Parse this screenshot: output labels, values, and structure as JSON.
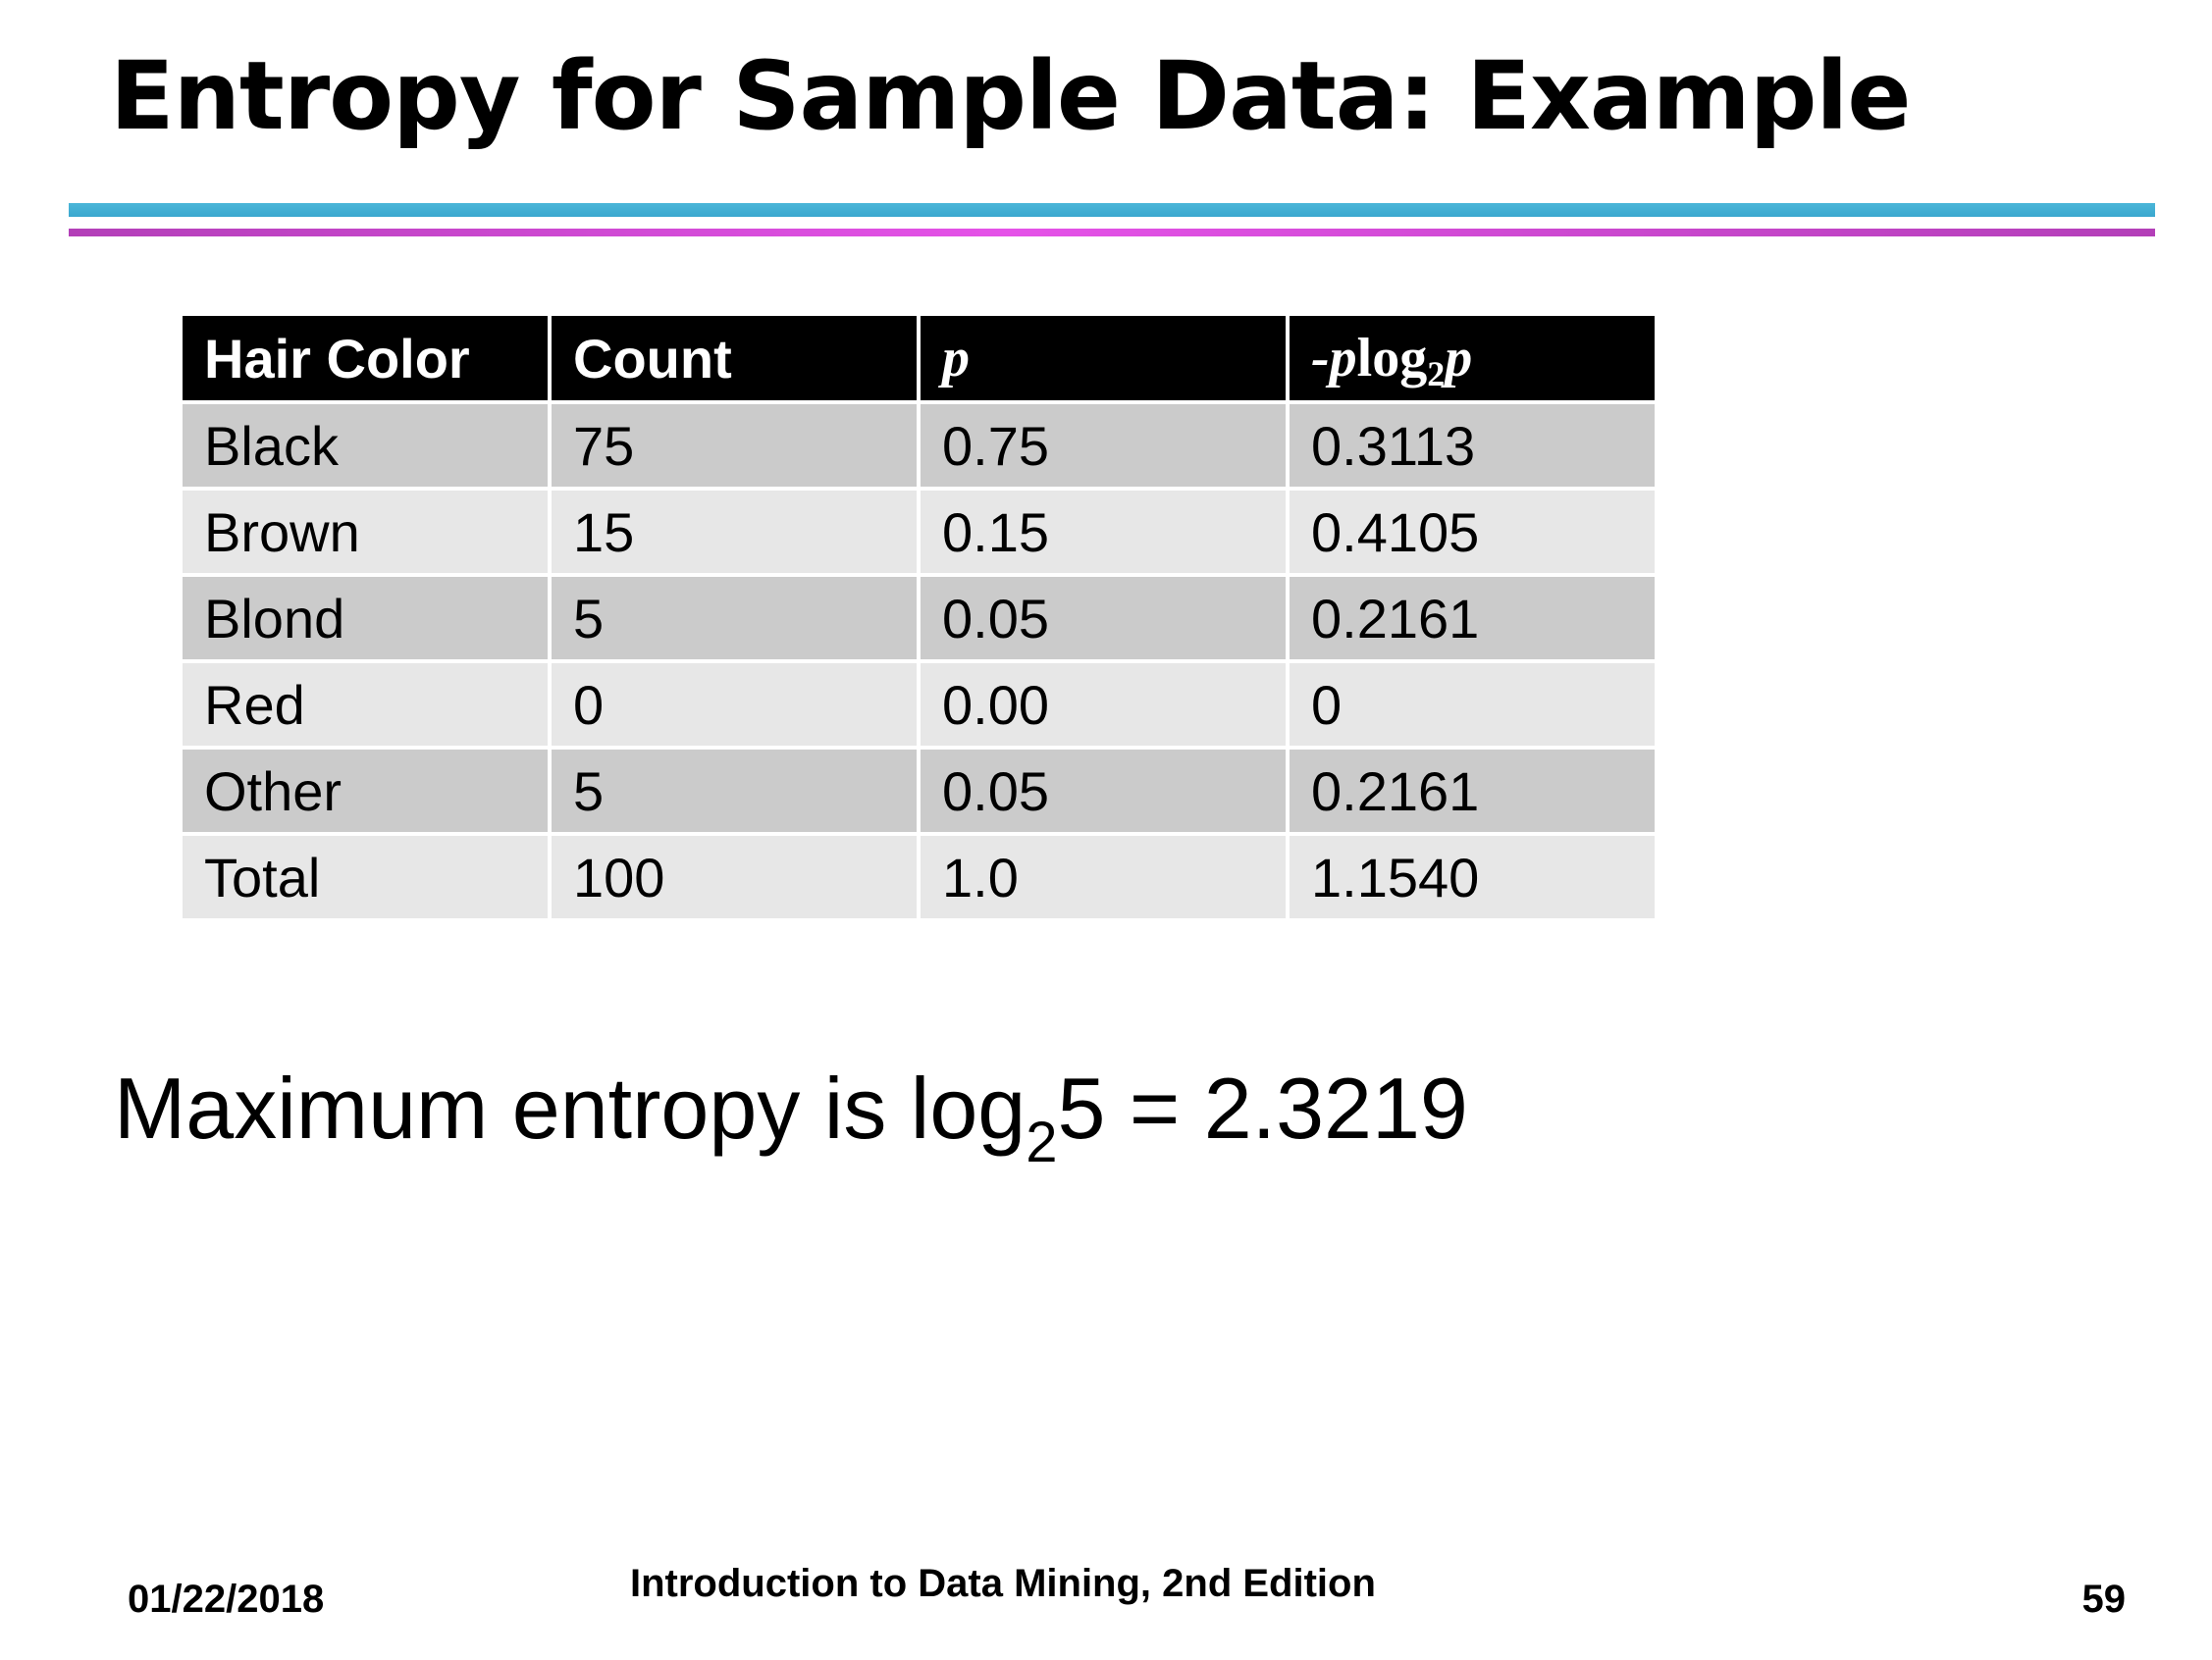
{
  "slide": {
    "title": "Entropy for Sample Data: Example"
  },
  "table": {
    "headers": {
      "hair_color": "Hair Color",
      "count": "Count",
      "p": "p",
      "neg_p_log": "-p",
      "neg_p_log_fn": "log",
      "neg_p_log_base": "2",
      "neg_p_log_arg": "p"
    },
    "rows": [
      {
        "hair_color": "Black",
        "count": "75",
        "p": "0.75",
        "neg_p_log2_p": "0.3113"
      },
      {
        "hair_color": "Brown",
        "count": "15",
        "p": "0.15",
        "neg_p_log2_p": "0.4105"
      },
      {
        "hair_color": "Blond",
        "count": "5",
        "p": "0.05",
        "neg_p_log2_p": "0.2161"
      },
      {
        "hair_color": "Red",
        "count": "0",
        "p": "0.00",
        "neg_p_log2_p": "0"
      },
      {
        "hair_color": "Other",
        "count": "5",
        "p": "0.05",
        "neg_p_log2_p": "0.2161"
      },
      {
        "hair_color": "Total",
        "count": "100",
        "p": "1.0",
        "neg_p_log2_p": "1.1540"
      }
    ]
  },
  "max_entropy": {
    "prefix": "Maximum entropy is log",
    "base": "2",
    "suffix": "5 = 2.3219"
  },
  "footer": {
    "date": "01/22/2018",
    "book": "Introduction to Data Mining, 2nd Edition",
    "page": "59"
  },
  "colors": {
    "rule_blue": "#4bb6d8",
    "rule_magenta": "#e552e8",
    "header_bg": "#000000",
    "row_dark": "#cbcbcb",
    "row_light": "#e7e7e7"
  }
}
